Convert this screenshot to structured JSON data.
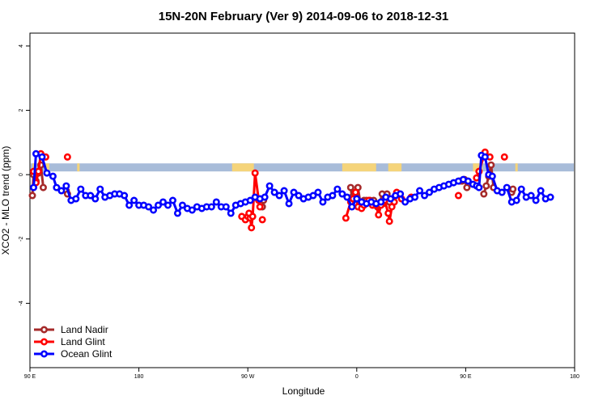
{
  "chart_data": {
    "type": "line",
    "title": "15N-20N February (Ver 9)   2014-09-06 to 2018-12-31",
    "xlabel": "Longitude",
    "ylabel": "XCO2 - MLO trend (ppm)",
    "xlim": [
      90,
      540
    ],
    "ylim": [
      -6,
      4.4
    ],
    "x_ticks": [
      {
        "value": 90,
        "label": "90 E"
      },
      {
        "value": 180,
        "label": "180"
      },
      {
        "value": 270,
        "label": "90 W"
      },
      {
        "value": 360,
        "label": "0"
      },
      {
        "value": 450,
        "label": "90 E"
      },
      {
        "value": 540,
        "label": "180"
      }
    ],
    "y_ticks": [
      {
        "value": -4,
        "label": "-4"
      },
      {
        "value": -2,
        "label": "-2"
      },
      {
        "value": 0,
        "label": "0"
      },
      {
        "value": 2,
        "label": "2"
      },
      {
        "value": 4,
        "label": "4"
      }
    ],
    "band": {
      "y_min": 0.1,
      "y_max": 0.35,
      "ocean_color": "#a8bcd9",
      "land_color": "#f5d47a",
      "land_ranges": [
        [
          92,
          94
        ],
        [
          103,
          106
        ],
        [
          129,
          131
        ],
        [
          257,
          275
        ],
        [
          348,
          376
        ],
        [
          386,
          397
        ],
        [
          456,
          464
        ],
        [
          491,
          493
        ]
      ]
    },
    "legend": {
      "position": "bottom-left"
    },
    "series": [
      {
        "name": "Land Nadir",
        "color": "#a52a2a",
        "segments": [
          [
            [
              92,
              -0.65
            ],
            [
              93,
              0.0
            ],
            [
              95,
              -0.2
            ],
            [
              97,
              0.05
            ],
            [
              99,
              0.3
            ],
            [
              101,
              -0.4
            ]
          ],
          [
            [
              120,
              -0.5
            ],
            [
              121,
              -0.6
            ]
          ],
          [
            [
              282,
              -1.0
            ],
            [
              283,
              -0.8
            ]
          ],
          [
            [
              355,
              -0.4
            ],
            [
              356,
              -0.7
            ],
            [
              359,
              -0.6
            ],
            [
              361,
              -0.4
            ],
            [
              363,
              -0.9
            ],
            [
              366,
              -0.8
            ],
            [
              368,
              -0.8
            ],
            [
              371,
              -0.8
            ],
            [
              374,
              -0.8
            ],
            [
              377,
              -1.0
            ],
            [
              379,
              -0.9
            ],
            [
              381,
              -0.6
            ],
            [
              382,
              -0.9
            ],
            [
              385,
              -0.6
            ],
            [
              387,
              -0.85
            ]
          ],
          [
            [
              445,
              -0.2
            ],
            [
              447,
              -0.2
            ],
            [
              449,
              -0.15
            ],
            [
              451,
              -0.4
            ]
          ],
          [
            [
              465,
              -0.6
            ],
            [
              467,
              -0.35
            ],
            [
              469,
              -0.05
            ],
            [
              471,
              0.3
            ],
            [
              473,
              -0.4
            ]
          ],
          [
            [
              488,
              -0.55
            ],
            [
              489,
              -0.45
            ]
          ]
        ]
      },
      {
        "name": "Land Glint",
        "color": "#ff0000",
        "segments": [
          [
            [
              93,
              0.1
            ],
            [
              95,
              -0.25
            ],
            [
              97,
              0.1
            ],
            [
              99,
              0.65
            ],
            [
              103,
              0.55
            ]
          ],
          [
            [
              121,
              0.55
            ]
          ],
          [
            [
              265,
              -1.3
            ],
            [
              268,
              -1.4
            ],
            [
              270,
              -1.3
            ],
            [
              271,
              -1.2
            ],
            [
              272,
              -1.35
            ],
            [
              273,
              -1.65
            ],
            [
              274,
              -1.3
            ],
            [
              276,
              0.05
            ],
            [
              279,
              -0.8
            ],
            [
              280,
              -1.0
            ]
          ],
          [
            [
              282,
              -1.4
            ]
          ],
          [
            [
              351,
              -1.35
            ],
            [
              355,
              -0.85
            ],
            [
              357,
              -0.75
            ],
            [
              359,
              -0.55
            ],
            [
              361,
              -1.0
            ],
            [
              364,
              -1.05
            ],
            [
              366,
              -0.95
            ],
            [
              370,
              -0.8
            ],
            [
              373,
              -0.95
            ],
            [
              376,
              -0.95
            ],
            [
              378,
              -1.25
            ],
            [
              380,
              -0.95
            ],
            [
              383,
              -0.8
            ],
            [
              386,
              -1.2
            ],
            [
              387,
              -1.45
            ],
            [
              389,
              -1.0
            ],
            [
              391,
              -0.85
            ],
            [
              393,
              -0.55
            ],
            [
              397,
              -0.75
            ]
          ],
          [
            [
              405,
              -0.7
            ]
          ],
          [
            [
              444,
              -0.65
            ]
          ],
          [
            [
              459,
              -0.1
            ],
            [
              461,
              0.1
            ],
            [
              466,
              0.7
            ],
            [
              470,
              0.55
            ]
          ],
          [
            [
              482,
              0.55
            ]
          ]
        ]
      },
      {
        "name": "Ocean Glint",
        "color": "#0000ff",
        "segments": [
          [
            [
              93,
              -0.4
            ],
            [
              95,
              0.65
            ],
            [
              100,
              0.55
            ],
            [
              104,
              0.05
            ],
            [
              109,
              -0.05
            ],
            [
              112,
              -0.4
            ],
            [
              116,
              -0.5
            ],
            [
              120,
              -0.35
            ],
            [
              124,
              -0.8
            ],
            [
              128,
              -0.75
            ],
            [
              132,
              -0.45
            ],
            [
              136,
              -0.65
            ],
            [
              140,
              -0.65
            ],
            [
              144,
              -0.75
            ],
            [
              148,
              -0.45
            ],
            [
              152,
              -0.7
            ],
            [
              156,
              -0.65
            ],
            [
              160,
              -0.6
            ],
            [
              164,
              -0.6
            ],
            [
              168,
              -0.65
            ],
            [
              172,
              -0.95
            ],
            [
              176,
              -0.8
            ],
            [
              180,
              -0.95
            ],
            [
              184,
              -0.95
            ],
            [
              188,
              -1.0
            ],
            [
              192,
              -1.1
            ],
            [
              196,
              -0.95
            ],
            [
              200,
              -0.85
            ],
            [
              204,
              -0.95
            ],
            [
              208,
              -0.8
            ],
            [
              212,
              -1.2
            ],
            [
              216,
              -0.95
            ],
            [
              220,
              -1.05
            ],
            [
              224,
              -1.1
            ],
            [
              228,
              -1.0
            ],
            [
              232,
              -1.05
            ],
            [
              236,
              -1.0
            ],
            [
              240,
              -1.0
            ],
            [
              244,
              -0.85
            ],
            [
              248,
              -1.0
            ],
            [
              252,
              -1.0
            ],
            [
              256,
              -1.2
            ],
            [
              260,
              -0.95
            ],
            [
              264,
              -0.9
            ],
            [
              268,
              -0.85
            ],
            [
              272,
              -0.8
            ],
            [
              276,
              -0.7
            ],
            [
              280,
              -0.75
            ],
            [
              284,
              -0.7
            ],
            [
              288,
              -0.35
            ],
            [
              292,
              -0.55
            ],
            [
              296,
              -0.65
            ],
            [
              300,
              -0.5
            ],
            [
              304,
              -0.9
            ],
            [
              308,
              -0.55
            ],
            [
              312,
              -0.65
            ],
            [
              316,
              -0.75
            ],
            [
              320,
              -0.7
            ],
            [
              324,
              -0.65
            ],
            [
              328,
              -0.55
            ],
            [
              332,
              -0.85
            ],
            [
              336,
              -0.7
            ],
            [
              340,
              -0.65
            ],
            [
              344,
              -0.45
            ],
            [
              348,
              -0.6
            ],
            [
              352,
              -0.7
            ],
            [
              356,
              -1.0
            ],
            [
              360,
              -0.75
            ],
            [
              364,
              -0.85
            ],
            [
              368,
              -0.9
            ],
            [
              372,
              -0.85
            ],
            [
              376,
              -0.9
            ],
            [
              380,
              -0.85
            ],
            [
              384,
              -0.7
            ],
            [
              388,
              -0.75
            ],
            [
              392,
              -0.65
            ],
            [
              396,
              -0.6
            ],
            [
              400,
              -0.85
            ],
            [
              404,
              -0.75
            ],
            [
              408,
              -0.7
            ],
            [
              412,
              -0.5
            ],
            [
              416,
              -0.65
            ],
            [
              420,
              -0.55
            ],
            [
              424,
              -0.45
            ],
            [
              428,
              -0.4
            ],
            [
              432,
              -0.35
            ],
            [
              436,
              -0.3
            ],
            [
              440,
              -0.25
            ],
            [
              444,
              -0.2
            ],
            [
              448,
              -0.15
            ],
            [
              452,
              -0.2
            ],
            [
              456,
              -0.3
            ],
            [
              459,
              -0.35
            ],
            [
              461,
              -0.4
            ],
            [
              463,
              0.6
            ],
            [
              466,
              0.55
            ],
            [
              469,
              0.0
            ],
            [
              472,
              -0.05
            ],
            [
              476,
              -0.5
            ],
            [
              480,
              -0.55
            ],
            [
              484,
              -0.4
            ],
            [
              488,
              -0.85
            ],
            [
              492,
              -0.8
            ],
            [
              496,
              -0.45
            ],
            [
              500,
              -0.7
            ],
            [
              504,
              -0.65
            ],
            [
              508,
              -0.8
            ],
            [
              512,
              -0.5
            ],
            [
              516,
              -0.75
            ],
            [
              520,
              -0.7
            ]
          ]
        ]
      }
    ]
  }
}
